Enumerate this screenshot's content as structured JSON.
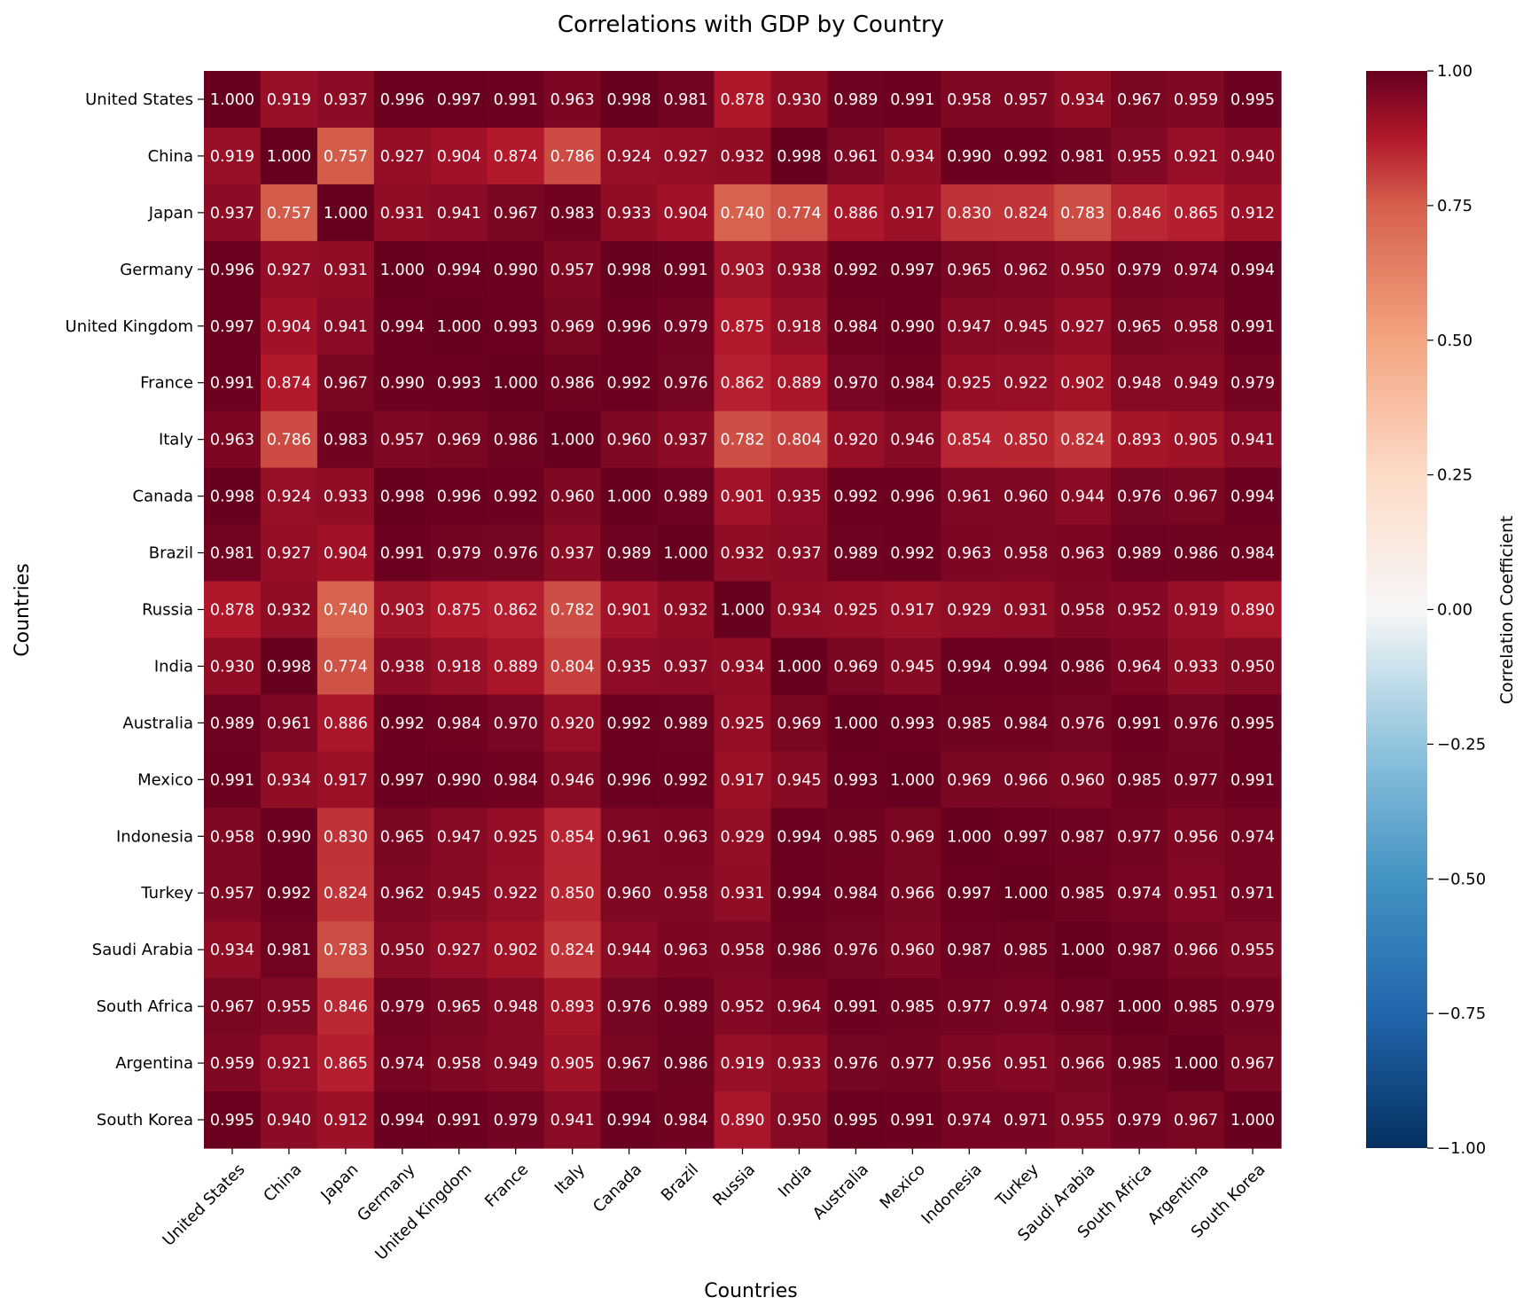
{
  "chart_data": {
    "type": "heatmap",
    "title": "Correlations with GDP by Country",
    "xlabel": "Countries",
    "ylabel": "Countries",
    "colorbar_label": "Correlation Coefficient",
    "colorbar_range": [
      -1.0,
      1.0
    ],
    "colorbar_ticks": [
      "1.00",
      "0.75",
      "0.50",
      "0.25",
      "0.00",
      "−0.25",
      "−0.50",
      "−0.75",
      "−1.00"
    ],
    "colormap": "RdBu_r",
    "colors": {
      "high": "#67001f",
      "mid": "#f7f7f7",
      "low": "#053061",
      "cell_text": "#ffffff"
    },
    "categories": [
      "United States",
      "China",
      "Japan",
      "Germany",
      "United Kingdom",
      "France",
      "Italy",
      "Canada",
      "Brazil",
      "Russia",
      "India",
      "Australia",
      "Mexico",
      "Indonesia",
      "Turkey",
      "Saudi Arabia",
      "South Africa",
      "Argentina",
      "South Korea"
    ],
    "values": [
      [
        "1.000",
        "0.919",
        "0.937",
        "0.996",
        "0.997",
        "0.991",
        "0.963",
        "0.998",
        "0.981",
        "0.878",
        "0.930",
        "0.989",
        "0.991",
        "0.958",
        "0.957",
        "0.934",
        "0.967",
        "0.959",
        "0.995"
      ],
      [
        "0.919",
        "1.000",
        "0.757",
        "0.927",
        "0.904",
        "0.874",
        "0.786",
        "0.924",
        "0.927",
        "0.932",
        "0.998",
        "0.961",
        "0.934",
        "0.990",
        "0.992",
        "0.981",
        "0.955",
        "0.921",
        "0.940"
      ],
      [
        "0.937",
        "0.757",
        "1.000",
        "0.931",
        "0.941",
        "0.967",
        "0.983",
        "0.933",
        "0.904",
        "0.740",
        "0.774",
        "0.886",
        "0.917",
        "0.830",
        "0.824",
        "0.783",
        "0.846",
        "0.865",
        "0.912"
      ],
      [
        "0.996",
        "0.927",
        "0.931",
        "1.000",
        "0.994",
        "0.990",
        "0.957",
        "0.998",
        "0.991",
        "0.903",
        "0.938",
        "0.992",
        "0.997",
        "0.965",
        "0.962",
        "0.950",
        "0.979",
        "0.974",
        "0.994"
      ],
      [
        "0.997",
        "0.904",
        "0.941",
        "0.994",
        "1.000",
        "0.993",
        "0.969",
        "0.996",
        "0.979",
        "0.875",
        "0.918",
        "0.984",
        "0.990",
        "0.947",
        "0.945",
        "0.927",
        "0.965",
        "0.958",
        "0.991"
      ],
      [
        "0.991",
        "0.874",
        "0.967",
        "0.990",
        "0.993",
        "1.000",
        "0.986",
        "0.992",
        "0.976",
        "0.862",
        "0.889",
        "0.970",
        "0.984",
        "0.925",
        "0.922",
        "0.902",
        "0.948",
        "0.949",
        "0.979"
      ],
      [
        "0.963",
        "0.786",
        "0.983",
        "0.957",
        "0.969",
        "0.986",
        "1.000",
        "0.960",
        "0.937",
        "0.782",
        "0.804",
        "0.920",
        "0.946",
        "0.854",
        "0.850",
        "0.824",
        "0.893",
        "0.905",
        "0.941"
      ],
      [
        "0.998",
        "0.924",
        "0.933",
        "0.998",
        "0.996",
        "0.992",
        "0.960",
        "1.000",
        "0.989",
        "0.901",
        "0.935",
        "0.992",
        "0.996",
        "0.961",
        "0.960",
        "0.944",
        "0.976",
        "0.967",
        "0.994"
      ],
      [
        "0.981",
        "0.927",
        "0.904",
        "0.991",
        "0.979",
        "0.976",
        "0.937",
        "0.989",
        "1.000",
        "0.932",
        "0.937",
        "0.989",
        "0.992",
        "0.963",
        "0.958",
        "0.963",
        "0.989",
        "0.986",
        "0.984"
      ],
      [
        "0.878",
        "0.932",
        "0.740",
        "0.903",
        "0.875",
        "0.862",
        "0.782",
        "0.901",
        "0.932",
        "1.000",
        "0.934",
        "0.925",
        "0.917",
        "0.929",
        "0.931",
        "0.958",
        "0.952",
        "0.919",
        "0.890"
      ],
      [
        "0.930",
        "0.998",
        "0.774",
        "0.938",
        "0.918",
        "0.889",
        "0.804",
        "0.935",
        "0.937",
        "0.934",
        "1.000",
        "0.969",
        "0.945",
        "0.994",
        "0.994",
        "0.986",
        "0.964",
        "0.933",
        "0.950"
      ],
      [
        "0.989",
        "0.961",
        "0.886",
        "0.992",
        "0.984",
        "0.970",
        "0.920",
        "0.992",
        "0.989",
        "0.925",
        "0.969",
        "1.000",
        "0.993",
        "0.985",
        "0.984",
        "0.976",
        "0.991",
        "0.976",
        "0.995"
      ],
      [
        "0.991",
        "0.934",
        "0.917",
        "0.997",
        "0.990",
        "0.984",
        "0.946",
        "0.996",
        "0.992",
        "0.917",
        "0.945",
        "0.993",
        "1.000",
        "0.969",
        "0.966",
        "0.960",
        "0.985",
        "0.977",
        "0.991"
      ],
      [
        "0.958",
        "0.990",
        "0.830",
        "0.965",
        "0.947",
        "0.925",
        "0.854",
        "0.961",
        "0.963",
        "0.929",
        "0.994",
        "0.985",
        "0.969",
        "1.000",
        "0.997",
        "0.987",
        "0.977",
        "0.956",
        "0.974"
      ],
      [
        "0.957",
        "0.992",
        "0.824",
        "0.962",
        "0.945",
        "0.922",
        "0.850",
        "0.960",
        "0.958",
        "0.931",
        "0.994",
        "0.984",
        "0.966",
        "0.997",
        "1.000",
        "0.985",
        "0.974",
        "0.951",
        "0.971"
      ],
      [
        "0.934",
        "0.981",
        "0.783",
        "0.950",
        "0.927",
        "0.902",
        "0.824",
        "0.944",
        "0.963",
        "0.958",
        "0.986",
        "0.976",
        "0.960",
        "0.987",
        "0.985",
        "1.000",
        "0.987",
        "0.966",
        "0.955"
      ],
      [
        "0.967",
        "0.955",
        "0.846",
        "0.979",
        "0.965",
        "0.948",
        "0.893",
        "0.976",
        "0.989",
        "0.952",
        "0.964",
        "0.991",
        "0.985",
        "0.977",
        "0.974",
        "0.987",
        "1.000",
        "0.985",
        "0.979"
      ],
      [
        "0.959",
        "0.921",
        "0.865",
        "0.974",
        "0.958",
        "0.949",
        "0.905",
        "0.967",
        "0.986",
        "0.919",
        "0.933",
        "0.976",
        "0.977",
        "0.956",
        "0.951",
        "0.966",
        "0.985",
        "1.000",
        "0.967"
      ],
      [
        "0.995",
        "0.940",
        "0.912",
        "0.994",
        "0.991",
        "0.979",
        "0.941",
        "0.994",
        "0.984",
        "0.890",
        "0.950",
        "0.995",
        "0.991",
        "0.974",
        "0.971",
        "0.955",
        "0.979",
        "0.967",
        "1.000"
      ]
    ]
  }
}
